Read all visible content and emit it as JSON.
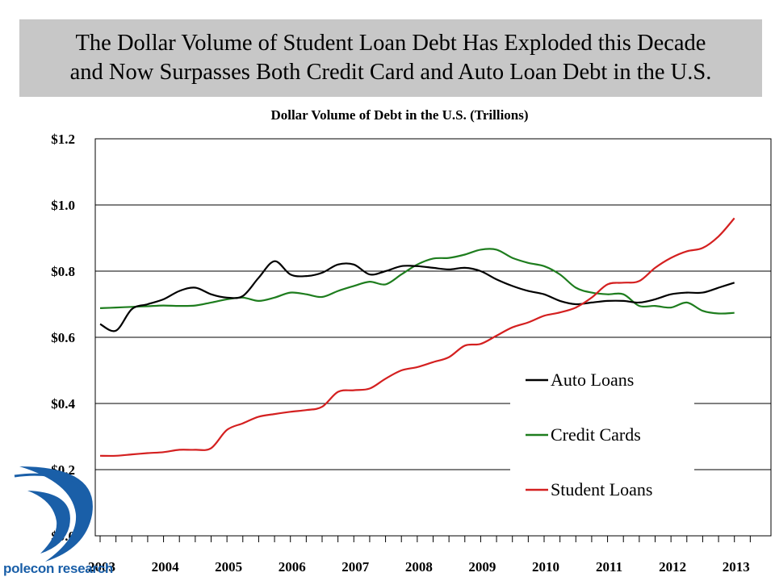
{
  "headline": {
    "line1": "The Dollar Volume of Student Loan Debt Has Exploded this Decade",
    "line2": "and Now Surpasses Both Credit Card and Auto Loan Debt in the U.S."
  },
  "logo": {
    "text": "polecon research",
    "icon": "polecon-swirl-logo"
  },
  "colors": {
    "headline_bg": "#c7c7c7",
    "auto": "#000000",
    "credit": "#1e7d1e",
    "student": "#d42020",
    "logo": "#1a5fa8"
  },
  "chart_data": {
    "type": "line",
    "title": "Dollar Volume of Debt in the U.S. (Trillions)",
    "xlabel": "",
    "ylabel": "",
    "ylim": [
      0,
      1.2
    ],
    "xlim": [
      2003.0,
      2013.5
    ],
    "y_ticks": [
      {
        "value": 0.0,
        "label": "$0.0"
      },
      {
        "value": 0.2,
        "label": "$0.2"
      },
      {
        "value": 0.4,
        "label": "$0.4"
      },
      {
        "value": 0.6,
        "label": "$0.6"
      },
      {
        "value": 0.8,
        "label": "$0.8"
      },
      {
        "value": 1.0,
        "label": "$1.0"
      },
      {
        "value": 1.2,
        "label": "$1.2"
      }
    ],
    "x_tick_labels": [
      {
        "value": 2003,
        "label": "2003"
      },
      {
        "value": 2004,
        "label": "2004"
      },
      {
        "value": 2005,
        "label": "2005"
      },
      {
        "value": 2006,
        "label": "2006"
      },
      {
        "value": 2007,
        "label": "2007"
      },
      {
        "value": 2008,
        "label": "2008"
      },
      {
        "value": 2009,
        "label": "2009"
      },
      {
        "value": 2010,
        "label": "2010"
      },
      {
        "value": 2011,
        "label": "2011"
      },
      {
        "value": 2012,
        "label": "2012"
      },
      {
        "value": 2013,
        "label": "2013"
      }
    ],
    "grid": "horizontal",
    "legend_position": "lower-right",
    "x": [
      2003.0,
      2003.25,
      2003.5,
      2003.75,
      2004.0,
      2004.25,
      2004.5,
      2004.75,
      2005.0,
      2005.25,
      2005.5,
      2005.75,
      2006.0,
      2006.25,
      2006.5,
      2006.75,
      2007.0,
      2007.25,
      2007.5,
      2007.75,
      2008.0,
      2008.25,
      2008.5,
      2008.75,
      2009.0,
      2009.25,
      2009.5,
      2009.75,
      2010.0,
      2010.25,
      2010.5,
      2010.75,
      2011.0,
      2011.25,
      2011.5,
      2011.75,
      2012.0,
      2012.25,
      2012.5,
      2012.75,
      2013.0
    ],
    "series": [
      {
        "name": "Auto Loans",
        "color": "#000000",
        "values": [
          0.64,
          0.62,
          0.685,
          0.7,
          0.715,
          0.74,
          0.75,
          0.73,
          0.72,
          0.725,
          0.78,
          0.83,
          0.79,
          0.785,
          0.795,
          0.82,
          0.82,
          0.79,
          0.8,
          0.815,
          0.815,
          0.81,
          0.805,
          0.81,
          0.8,
          0.775,
          0.755,
          0.74,
          0.73,
          0.71,
          0.7,
          0.705,
          0.71,
          0.71,
          0.705,
          0.715,
          0.73,
          0.735,
          0.735,
          0.75,
          0.765
        ]
      },
      {
        "name": "Credit Cards",
        "color": "#1e7d1e",
        "values": [
          0.688,
          0.69,
          0.692,
          0.694,
          0.696,
          0.695,
          0.696,
          0.705,
          0.715,
          0.72,
          0.71,
          0.72,
          0.735,
          0.73,
          0.722,
          0.74,
          0.755,
          0.768,
          0.76,
          0.79,
          0.82,
          0.838,
          0.84,
          0.85,
          0.865,
          0.865,
          0.84,
          0.825,
          0.815,
          0.79,
          0.75,
          0.735,
          0.73,
          0.73,
          0.695,
          0.695,
          0.69,
          0.705,
          0.68,
          0.672,
          0.674
        ]
      },
      {
        "name": "Student Loans",
        "color": "#d42020",
        "values": [
          0.242,
          0.242,
          0.246,
          0.25,
          0.253,
          0.26,
          0.26,
          0.265,
          0.32,
          0.34,
          0.36,
          0.368,
          0.375,
          0.38,
          0.39,
          0.435,
          0.44,
          0.445,
          0.475,
          0.5,
          0.51,
          0.525,
          0.54,
          0.575,
          0.58,
          0.605,
          0.63,
          0.645,
          0.665,
          0.675,
          0.69,
          0.72,
          0.76,
          0.765,
          0.77,
          0.81,
          0.84,
          0.86,
          0.87,
          0.905,
          0.96
        ]
      }
    ]
  }
}
